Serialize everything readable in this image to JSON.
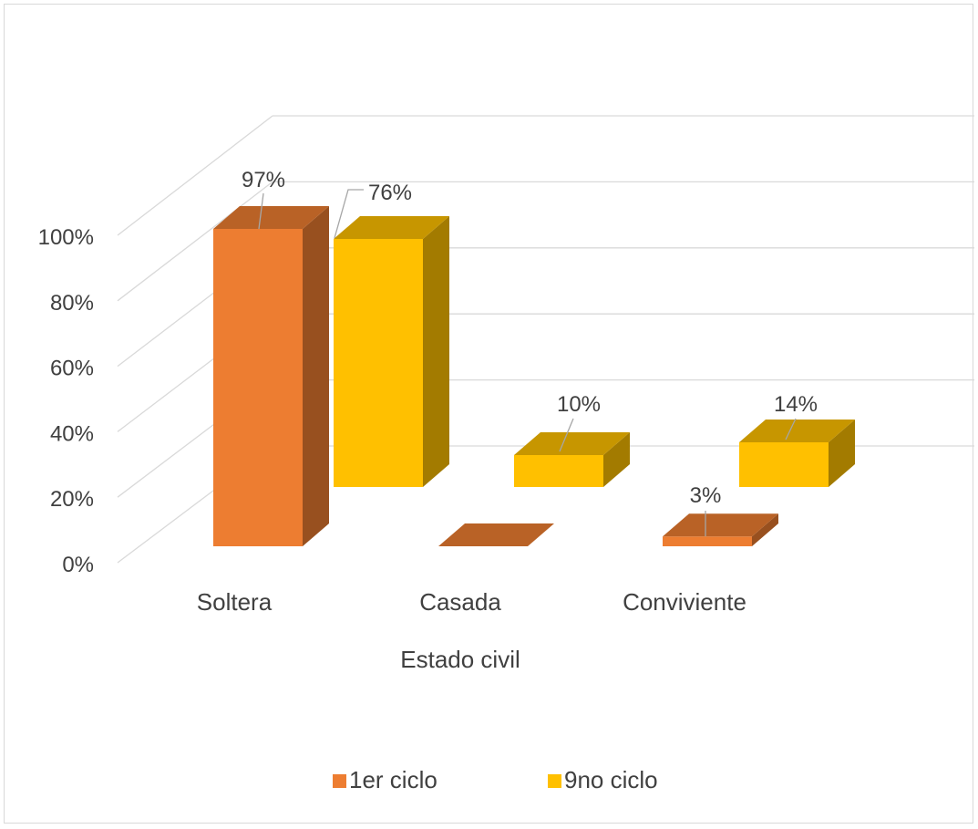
{
  "chart_data": {
    "type": "bar",
    "three_d": true,
    "categories": [
      "Soltera",
      "Casada",
      "Conviviente"
    ],
    "series": [
      {
        "name": "1er ciclo",
        "values": [
          97,
          0,
          3
        ],
        "labels": [
          "97%",
          "",
          "3%"
        ]
      },
      {
        "name": "9no ciclo",
        "values": [
          76,
          10,
          14
        ],
        "labels": [
          "76%",
          "10%",
          "14%"
        ]
      }
    ],
    "title": "",
    "xlabel": "Estado civil",
    "ylabel": "",
    "ylim": [
      0,
      100
    ],
    "y_ticks": [
      "0%",
      "20%",
      "40%",
      "60%",
      "80%",
      "100%"
    ],
    "grid": true,
    "legend_position": "bottom"
  },
  "colors": {
    "series_1": "#ED7D31",
    "series_2": "#FFC000",
    "grid": "#d9d9d9",
    "text": "#404040"
  }
}
